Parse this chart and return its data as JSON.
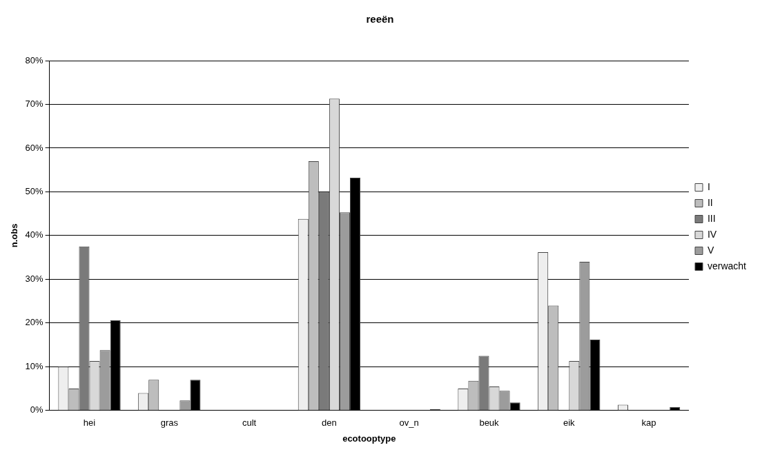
{
  "chart_data": {
    "type": "bar",
    "title": "reeën",
    "xlabel": "ecotooptype",
    "ylabel": "n.obs",
    "categories": [
      "hei",
      "gras",
      "cult",
      "den",
      "ov_n",
      "beuk",
      "eik",
      "kap"
    ],
    "series": [
      {
        "name": "I",
        "color": "#eeeeee",
        "values": [
          10,
          4,
          0,
          43.8,
          0,
          5,
          36.2,
          1.3
        ]
      },
      {
        "name": "II",
        "color": "#bdbdbd",
        "values": [
          5,
          7,
          0,
          57,
          0,
          6.8,
          24,
          0
        ]
      },
      {
        "name": "III",
        "color": "#7a7a7a",
        "values": [
          37.5,
          0,
          0,
          50,
          0,
          12.5,
          0,
          0
        ]
      },
      {
        "name": "IV",
        "color": "#d8d8d8",
        "values": [
          11.3,
          0,
          0,
          71.3,
          0,
          5.5,
          11.3,
          0
        ]
      },
      {
        "name": "V",
        "color": "#9c9c9c",
        "values": [
          13.8,
          2.3,
          0,
          45.3,
          0,
          4.5,
          34,
          0
        ]
      },
      {
        "name": "verwacht",
        "color": "#000000",
        "values": [
          20.6,
          7,
          0,
          53.2,
          0.3,
          1.8,
          16.2,
          0.8
        ]
      }
    ],
    "ylim": [
      0,
      80
    ],
    "yticks": [
      {
        "value": 0,
        "label": "0%"
      },
      {
        "value": 10,
        "label": "10%"
      },
      {
        "value": 20,
        "label": "20%"
      },
      {
        "value": 30,
        "label": "30%"
      },
      {
        "value": 40,
        "label": "40%"
      },
      {
        "value": 50,
        "label": "50%"
      },
      {
        "value": 60,
        "label": "60%"
      },
      {
        "value": 70,
        "label": "70%"
      },
      {
        "value": 80,
        "label": "80%"
      }
    ],
    "grid": "y",
    "legend": "right"
  }
}
